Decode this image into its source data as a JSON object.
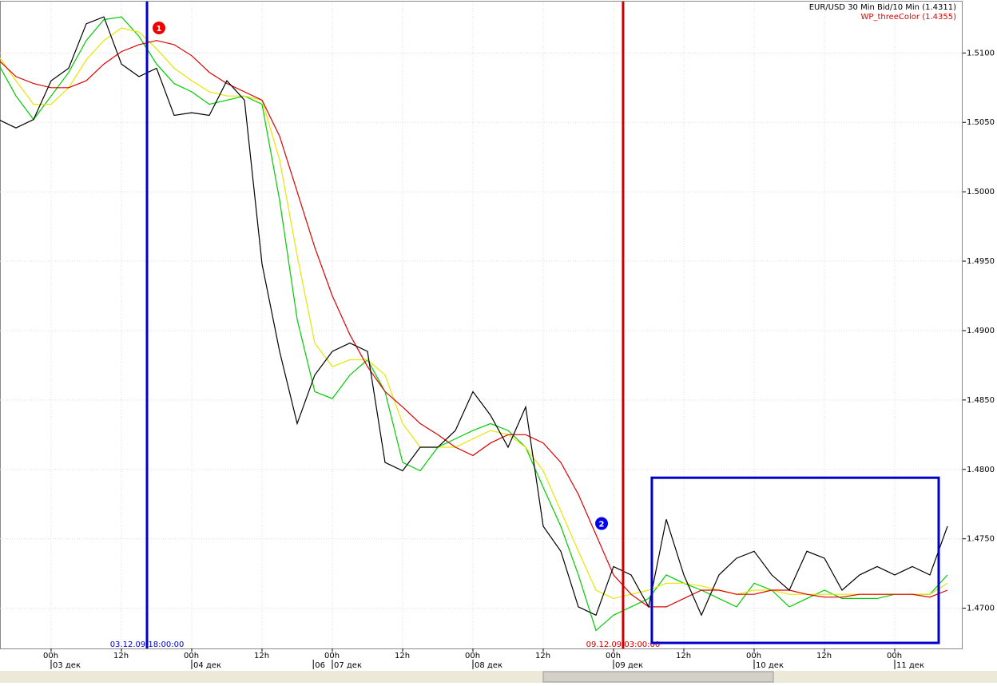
{
  "chart_data": {
    "type": "line",
    "legend": "top-right",
    "grid": true,
    "xlim": [
      -0.727,
      12.966
    ],
    "ylim": [
      1.4671,
      1.5137
    ],
    "yticks": [
      {
        "value": 1.47,
        "label": "1.4700"
      },
      {
        "value": 1.475,
        "label": "1.4750"
      },
      {
        "value": 1.48,
        "label": "1.4800"
      },
      {
        "value": 1.485,
        "label": "1.4850"
      },
      {
        "value": 1.49,
        "label": "1.4900"
      },
      {
        "value": 1.495,
        "label": "1.4950"
      },
      {
        "value": 1.5,
        "label": "1.5000"
      },
      {
        "value": 1.505,
        "label": "1.5050"
      },
      {
        "value": 1.51,
        "label": "1.5100"
      }
    ],
    "xticks": [
      {
        "value": 0,
        "label": "00h"
      },
      {
        "value": 1,
        "label": "12h"
      },
      {
        "value": 2,
        "label": "00h"
      },
      {
        "value": 3,
        "label": "12h"
      },
      {
        "value": 4,
        "label": "00h"
      },
      {
        "value": 5,
        "label": "12h"
      },
      {
        "value": 6,
        "label": "00h"
      },
      {
        "value": 7,
        "label": "12h"
      },
      {
        "value": 8,
        "label": "00h"
      },
      {
        "value": 9,
        "label": "12h"
      },
      {
        "value": 10,
        "label": "00h"
      },
      {
        "value": 11,
        "label": "12h"
      },
      {
        "value": 12,
        "label": "00h"
      }
    ],
    "date_labels": [
      {
        "value": 0,
        "label": "03 дек"
      },
      {
        "value": 2,
        "label": "04 дек"
      },
      {
        "value": 3.73,
        "label": "06"
      },
      {
        "value": 4,
        "label": "07 дек"
      },
      {
        "value": 6,
        "label": "08 дек"
      },
      {
        "value": 8,
        "label": "09 дек"
      },
      {
        "value": 10,
        "label": "10 дек"
      },
      {
        "value": 12,
        "label": "11 дек"
      }
    ],
    "x": [
      -0.75,
      -0.5,
      -0.25,
      0,
      0.25,
      0.5,
      0.75,
      1,
      1.25,
      1.5,
      1.75,
      2,
      2.25,
      2.5,
      2.75,
      3,
      3.25,
      3.5,
      3.75,
      4,
      4.25,
      4.5,
      4.75,
      5,
      5.25,
      5.5,
      5.75,
      6,
      6.25,
      6.5,
      6.75,
      7,
      7.25,
      7.5,
      7.75,
      8,
      8.25,
      8.5,
      8.75,
      9,
      9.25,
      9.5,
      9.75,
      10,
      10.25,
      10.5,
      10.75,
      11,
      11.25,
      11.5,
      11.75,
      12,
      12.25,
      12.5,
      12.75
    ],
    "series": [
      {
        "color": "#00cc00",
        "values": [
          1.5092,
          1.5069,
          1.5052,
          1.5069,
          1.5086,
          1.5109,
          1.5124,
          1.5126,
          1.5112,
          1.5092,
          1.5078,
          1.5072,
          1.5063,
          1.5066,
          1.5069,
          1.5063,
          1.4994,
          1.4908,
          1.4856,
          1.4851,
          1.4868,
          1.4879,
          1.4856,
          1.4805,
          1.4799,
          1.4816,
          1.4822,
          1.4828,
          1.4833,
          1.4828,
          1.4816,
          1.4787,
          1.4759,
          1.4724,
          1.4684,
          1.4695,
          1.4701,
          1.4707,
          1.4724,
          1.4718,
          1.4713,
          1.4707,
          1.4701,
          1.4718,
          1.4713,
          1.4701,
          1.4707,
          1.4713,
          1.4707,
          1.4707,
          1.4707,
          1.471,
          1.471,
          1.471,
          1.4724
        ]
      },
      {
        "color": "#e6e600",
        "values": [
          1.5098,
          1.508,
          1.5063,
          1.5063,
          1.5075,
          1.5095,
          1.5109,
          1.5118,
          1.5115,
          1.5103,
          1.5089,
          1.508,
          1.5072,
          1.5069,
          1.5069,
          1.5066,
          1.5023,
          1.4954,
          1.4891,
          1.4874,
          1.4879,
          1.4879,
          1.4868,
          1.4833,
          1.4816,
          1.4816,
          1.4816,
          1.4822,
          1.4828,
          1.4825,
          1.4816,
          1.4799,
          1.477,
          1.4741,
          1.4713,
          1.4707,
          1.471,
          1.4713,
          1.4718,
          1.4718,
          1.4716,
          1.4713,
          1.471,
          1.4713,
          1.4713,
          1.471,
          1.471,
          1.471,
          1.471,
          1.471,
          1.471,
          1.471,
          1.471,
          1.471,
          1.4718
        ]
      },
      {
        "name": "WP_threeColor (1.4355)",
        "color": "#dd0000",
        "values": [
          1.5095,
          1.5083,
          1.5078,
          1.5075,
          1.5075,
          1.508,
          1.5092,
          1.5101,
          1.5106,
          1.5109,
          1.5106,
          1.5098,
          1.5086,
          1.5078,
          1.5072,
          1.5066,
          1.504,
          1.5,
          1.496,
          1.4925,
          1.4897,
          1.4874,
          1.4856,
          1.4845,
          1.4833,
          1.4825,
          1.4816,
          1.481,
          1.4819,
          1.4825,
          1.4825,
          1.4819,
          1.4805,
          1.4782,
          1.4753,
          1.4724,
          1.471,
          1.4701,
          1.4701,
          1.4707,
          1.4713,
          1.4713,
          1.471,
          1.471,
          1.4713,
          1.4713,
          1.471,
          1.4708,
          1.4708,
          1.471,
          1.471,
          1.471,
          1.471,
          1.4708,
          1.4713
        ]
      },
      {
        "name": "EUR/USD 30 Min Bid/10 Min (1.4311)",
        "color": "#000000",
        "values": [
          1.5052,
          1.5046,
          1.5052,
          1.508,
          1.5089,
          1.5121,
          1.5126,
          1.5092,
          1.5083,
          1.5089,
          1.5055,
          1.5057,
          1.5055,
          1.508,
          1.5066,
          1.4948,
          1.4885,
          1.4833,
          1.4868,
          1.4885,
          1.4891,
          1.4885,
          1.4805,
          1.4799,
          1.4816,
          1.4816,
          1.4828,
          1.4856,
          1.4839,
          1.4816,
          1.4845,
          1.4759,
          1.4741,
          1.4701,
          1.4695,
          1.473,
          1.4724,
          1.4701,
          1.4764,
          1.4724,
          1.4695,
          1.4724,
          1.4736,
          1.4741,
          1.4724,
          1.4713,
          1.4741,
          1.4736,
          1.4713,
          1.4724,
          1.473,
          1.4724,
          1.473,
          1.4724,
          1.4759
        ]
      }
    ],
    "vlines": [
      {
        "x": 1.364,
        "label": "03.12.09 18:00:00",
        "color": "#0000cc"
      },
      {
        "x": 8.136,
        "label": "09.12.09 03:00:00",
        "color": "#cc0000"
      }
    ],
    "box": {
      "x": [
        8.545,
        12.625
      ],
      "y": [
        1.4675,
        1.4794
      ],
      "color": "#0000cc"
    },
    "annotations": [
      {
        "label": "1",
        "x": 1.534,
        "y": 1.5118,
        "color": "#ee0000"
      },
      {
        "label": "2",
        "x": 7.83,
        "y": 1.4761,
        "color": "#0000ee"
      }
    ]
  }
}
